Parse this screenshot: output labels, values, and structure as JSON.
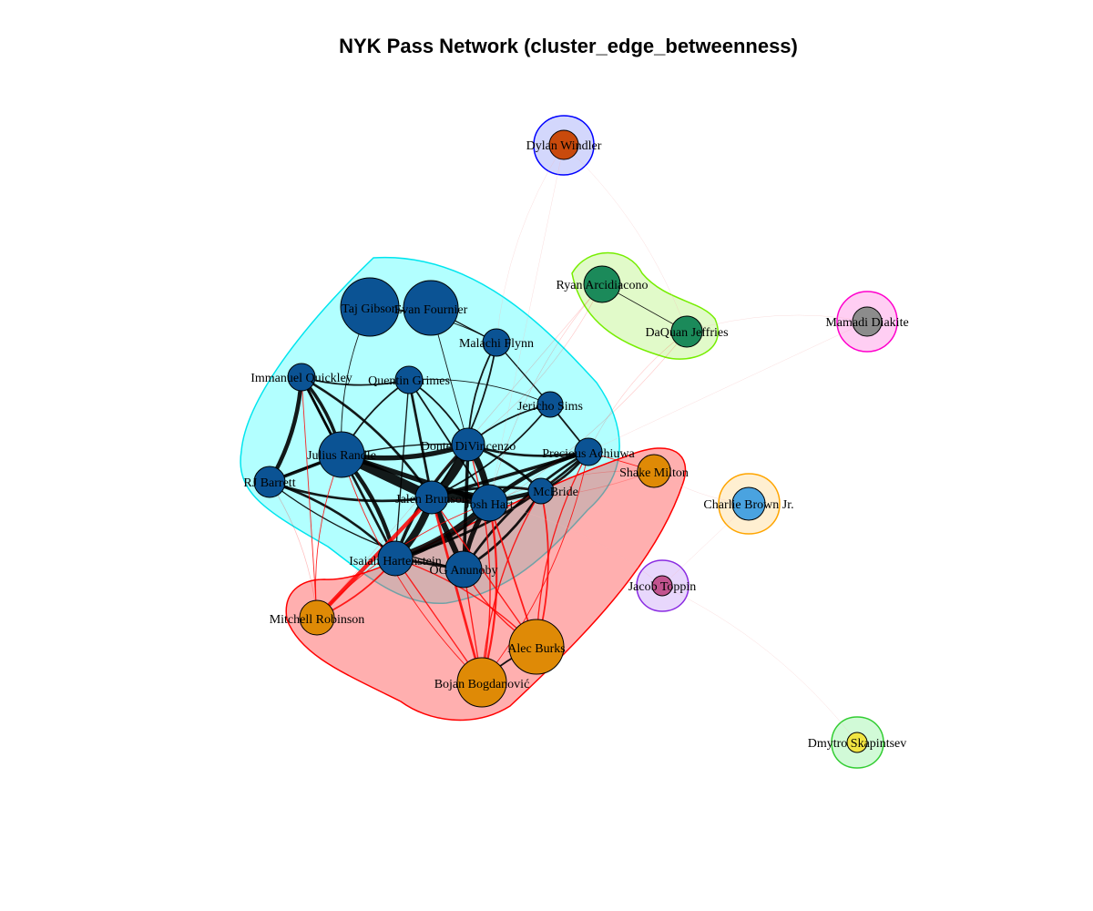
{
  "title": "NYK Pass Network (cluster_edge_betweenness)",
  "clusters": [
    {
      "id": "c1",
      "fill": "#00FFFF",
      "stroke": "#00E5EE"
    },
    {
      "id": "c2",
      "fill": "#FF4D4D",
      "stroke": "#FF0000"
    },
    {
      "id": "c3",
      "fill": "#9CF04C",
      "stroke": "#76EE00"
    },
    {
      "id": "c4",
      "fill": "#6E7BF5",
      "stroke": "#0000FF"
    },
    {
      "id": "c5",
      "fill": "#FF5CD6",
      "stroke": "#FF00CC"
    },
    {
      "id": "c6",
      "fill": "#FFC966",
      "stroke": "#FFA500"
    },
    {
      "id": "c7",
      "fill": "#B37CF5",
      "stroke": "#8A2BE2"
    },
    {
      "id": "c8",
      "fill": "#66F07A",
      "stroke": "#32CD32"
    }
  ],
  "nodes": [
    {
      "id": "taj",
      "label": "Taj Gibson",
      "cluster": "c1",
      "color": "#0B5394"
    },
    {
      "id": "evan",
      "label": "Evan Fournier",
      "cluster": "c1",
      "color": "#0B5394"
    },
    {
      "id": "malachi",
      "label": "Malachi Flynn",
      "cluster": "c1",
      "color": "#0B5394"
    },
    {
      "id": "quickley",
      "label": "Immanuel Quickley",
      "cluster": "c1",
      "color": "#0B5394"
    },
    {
      "id": "grimes",
      "label": "Quentin Grimes",
      "cluster": "c1",
      "color": "#0B5394"
    },
    {
      "id": "sims",
      "label": "Jericho Sims",
      "cluster": "c1",
      "color": "#0B5394"
    },
    {
      "id": "randle",
      "label": "Julius Randle",
      "cluster": "c1",
      "color": "#0B5394"
    },
    {
      "id": "divincenzo",
      "label": "Donte DiVincenzo",
      "cluster": "c1",
      "color": "#0B5394"
    },
    {
      "id": "achiuwa",
      "label": "Precious Achiuwa",
      "cluster": "c1",
      "color": "#0B5394"
    },
    {
      "id": "barrett",
      "label": "RJ Barrett",
      "cluster": "c1",
      "color": "#0B5394"
    },
    {
      "id": "brunson",
      "label": "Jalen Brunson",
      "cluster": "c1",
      "color": "#0B5394"
    },
    {
      "id": "hart",
      "label": "Josh Hart",
      "cluster": "c1",
      "color": "#0B5394"
    },
    {
      "id": "mcbride",
      "label": "McBride",
      "cluster": "c1",
      "color": "#0B5394"
    },
    {
      "id": "hartenstein",
      "label": "Isaiah Hartenstein",
      "cluster": "c1",
      "color": "#0B5394"
    },
    {
      "id": "anunoby",
      "label": "OG Anunoby",
      "cluster": "c1",
      "color": "#0B5394"
    },
    {
      "id": "milton",
      "label": "Shake Milton",
      "cluster": "c2",
      "color": "#DF8A06"
    },
    {
      "id": "robinson",
      "label": "Mitchell Robinson",
      "cluster": "c2",
      "color": "#DF8A06"
    },
    {
      "id": "burks",
      "label": "Alec Burks",
      "cluster": "c2",
      "color": "#DF8A06"
    },
    {
      "id": "bogdanovic",
      "label": "Bojan Bogdanović",
      "cluster": "c2",
      "color": "#DF8A06"
    },
    {
      "id": "arcidiacono",
      "label": "Ryan Arcidiacono",
      "cluster": "c3",
      "color": "#1B8A5A"
    },
    {
      "id": "jeffries",
      "label": "DaQuan Jeffries",
      "cluster": "c3",
      "color": "#1B8A5A"
    },
    {
      "id": "windler",
      "label": "Dylan Windler",
      "cluster": "c4",
      "color": "#C94A0C"
    },
    {
      "id": "diakite",
      "label": "Mamadi Diakite",
      "cluster": "c5",
      "color": "#8C8C8C"
    },
    {
      "id": "brownjr",
      "label": "Charlie Brown Jr.",
      "cluster": "c6",
      "color": "#4AA3E0"
    },
    {
      "id": "toppin",
      "label": "Jacob Toppin",
      "cluster": "c7",
      "color": "#C2548F"
    },
    {
      "id": "skapintsev",
      "label": "Dmytro Skapintsev",
      "cluster": "c8",
      "color": "#F0E442"
    }
  ],
  "edges": [
    {
      "s": "brunson",
      "t": "hart",
      "w": 14
    },
    {
      "s": "brunson",
      "t": "randle",
      "w": 12
    },
    {
      "s": "brunson",
      "t": "divincenzo",
      "w": 10
    },
    {
      "s": "brunson",
      "t": "hartenstein",
      "w": 9
    },
    {
      "s": "brunson",
      "t": "anunoby",
      "w": 7
    },
    {
      "s": "hart",
      "t": "divincenzo",
      "w": 8
    },
    {
      "s": "hart",
      "t": "hartenstein",
      "w": 9
    },
    {
      "s": "hart",
      "t": "randle",
      "w": 6
    },
    {
      "s": "hart",
      "t": "anunoby",
      "w": 6
    },
    {
      "s": "hart",
      "t": "achiuwa",
      "w": 5
    },
    {
      "s": "hart",
      "t": "mcbride",
      "w": 5
    },
    {
      "s": "randle",
      "t": "divincenzo",
      "w": 6
    },
    {
      "s": "randle",
      "t": "hartenstein",
      "w": 5
    },
    {
      "s": "randle",
      "t": "barrett",
      "w": 4
    },
    {
      "s": "randle",
      "t": "quickley",
      "w": 4
    },
    {
      "s": "quickley",
      "t": "barrett",
      "w": 5
    },
    {
      "s": "quickley",
      "t": "randle",
      "w": 3
    },
    {
      "s": "quickley",
      "t": "grimes",
      "w": 2
    },
    {
      "s": "quickley",
      "t": "brunson",
      "w": 3
    },
    {
      "s": "quickley",
      "t": "hartenstein",
      "w": 3
    },
    {
      "s": "barrett",
      "t": "brunson",
      "w": 3
    },
    {
      "s": "barrett",
      "t": "hartenstein",
      "w": 3
    },
    {
      "s": "grimes",
      "t": "brunson",
      "w": 3
    },
    {
      "s": "grimes",
      "t": "randle",
      "w": 2
    },
    {
      "s": "grimes",
      "t": "divincenzo",
      "w": 2
    },
    {
      "s": "grimes",
      "t": "hart",
      "w": 2
    },
    {
      "s": "divincenzo",
      "t": "achiuwa",
      "w": 3
    },
    {
      "s": "divincenzo",
      "t": "mcbride",
      "w": 3
    },
    {
      "s": "divincenzo",
      "t": "anunoby",
      "w": 4
    },
    {
      "s": "divincenzo",
      "t": "hartenstein",
      "w": 4
    },
    {
      "s": "achiuwa",
      "t": "mcbride",
      "w": 3
    },
    {
      "s": "achiuwa",
      "t": "brunson",
      "w": 4
    },
    {
      "s": "achiuwa",
      "t": "anunoby",
      "w": 3
    },
    {
      "s": "achiuwa",
      "t": "hartenstein",
      "w": 3
    },
    {
      "s": "achiuwa",
      "t": "sims",
      "w": 2
    },
    {
      "s": "mcbride",
      "t": "brunson",
      "w": 3
    },
    {
      "s": "mcbride",
      "t": "anunoby",
      "w": 3
    },
    {
      "s": "hartenstein",
      "t": "anunoby",
      "w": 3
    },
    {
      "s": "sims",
      "t": "divincenzo",
      "w": 2
    },
    {
      "s": "sims",
      "t": "brunson",
      "w": 2
    },
    {
      "s": "sims",
      "t": "malachi",
      "w": 1.5
    },
    {
      "s": "malachi",
      "t": "divincenzo",
      "w": 2
    },
    {
      "s": "malachi",
      "t": "brunson",
      "w": 2
    },
    {
      "s": "malachi",
      "t": "evan",
      "w": 1.5
    },
    {
      "s": "taj",
      "t": "evan",
      "w": 1.5
    },
    {
      "s": "taj",
      "t": "malachi",
      "w": 1
    },
    {
      "s": "evan",
      "t": "divincenzo",
      "w": 1
    },
    {
      "s": "taj",
      "t": "randle",
      "w": 1
    },
    {
      "s": "grimes",
      "t": "sims",
      "w": 1
    },
    {
      "s": "grimes",
      "t": "hartenstein",
      "w": 1.5
    },
    {
      "s": "barrett",
      "t": "anunoby",
      "w": 1.5
    },
    {
      "s": "barrett",
      "t": "divincenzo",
      "w": 1.5
    },
    {
      "s": "robinson",
      "t": "brunson",
      "w": 5
    },
    {
      "s": "robinson",
      "t": "hartenstein",
      "w": 2
    },
    {
      "s": "robinson",
      "t": "randle",
      "w": 1
    },
    {
      "s": "robinson",
      "t": "quickley",
      "w": 1
    },
    {
      "s": "robinson",
      "t": "barrett",
      "w": 0.8
    },
    {
      "s": "robinson",
      "t": "hart",
      "w": 1
    },
    {
      "s": "bogdanovic",
      "t": "brunson",
      "w": 3
    },
    {
      "s": "bogdanovic",
      "t": "hart",
      "w": 2.5
    },
    {
      "s": "bogdanovic",
      "t": "mcbride",
      "w": 1.5
    },
    {
      "s": "bogdanovic",
      "t": "hartenstein",
      "w": 1.5
    },
    {
      "s": "bogdanovic",
      "t": "divincenzo",
      "w": 1.5
    },
    {
      "s": "bogdanovic",
      "t": "randle",
      "w": 1
    },
    {
      "s": "bogdanovic",
      "t": "anunoby",
      "w": 1.5
    },
    {
      "s": "bogdanovic",
      "t": "achiuwa",
      "w": 1
    },
    {
      "s": "bogdanovic",
      "t": "burks",
      "w": 2
    },
    {
      "s": "burks",
      "t": "hart",
      "w": 2
    },
    {
      "s": "burks",
      "t": "mcbride",
      "w": 2
    },
    {
      "s": "burks",
      "t": "achiuwa",
      "w": 1.5
    },
    {
      "s": "burks",
      "t": "brunson",
      "w": 1.5
    },
    {
      "s": "burks",
      "t": "hartenstein",
      "w": 1.5
    },
    {
      "s": "burks",
      "t": "anunoby",
      "w": 1.5
    },
    {
      "s": "milton",
      "t": "achiuwa",
      "w": 1
    },
    {
      "s": "milton",
      "t": "hart",
      "w": 0.8
    },
    {
      "s": "milton",
      "t": "brunson",
      "w": 0.8
    },
    {
      "s": "arcidiacono",
      "t": "jeffries",
      "w": 0.8
    },
    {
      "s": "arcidiacono",
      "t": "hart",
      "w": 0.6
    },
    {
      "s": "arcidiacono",
      "t": "divincenzo",
      "w": 0.6
    },
    {
      "s": "arcidiacono",
      "t": "robinson",
      "w": 0.6
    },
    {
      "s": "jeffries",
      "t": "achiuwa",
      "w": 0.6
    },
    {
      "s": "jeffries",
      "t": "hartenstein",
      "w": 0.6
    },
    {
      "s": "windler",
      "t": "hart",
      "w": 0.4
    },
    {
      "s": "windler",
      "t": "malachi",
      "w": 0.4
    },
    {
      "s": "windler",
      "t": "jeffries",
      "w": 0.4
    },
    {
      "s": "diakite",
      "t": "achiuwa",
      "w": 0.4
    },
    {
      "s": "diakite",
      "t": "jeffries",
      "w": 0.4
    },
    {
      "s": "brownjr",
      "t": "milton",
      "w": 0.4
    },
    {
      "s": "brownjr",
      "t": "toppin",
      "w": 0.4
    },
    {
      "s": "toppin",
      "t": "hart",
      "w": 0.4
    },
    {
      "s": "toppin",
      "t": "skapintsev",
      "w": 0.4
    }
  ]
}
